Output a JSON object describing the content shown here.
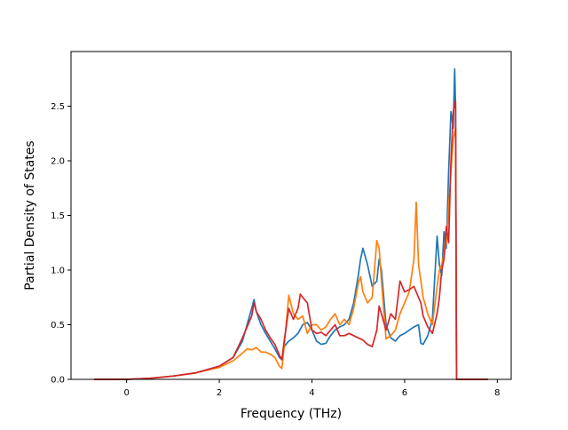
{
  "chart_data": {
    "type": "line",
    "title": "",
    "xlabel": "Frequency (THz)",
    "ylabel": "Partial Density of States",
    "xlim": [
      -1.2,
      8.3
    ],
    "ylim": [
      0.0,
      3.0
    ],
    "xticks": [
      "0",
      "2",
      "4",
      "6",
      "8"
    ],
    "yticks": [
      "0.0",
      "0.5",
      "1.0",
      "1.5",
      "2.0",
      "2.5"
    ],
    "grid": false,
    "legend": "none",
    "series": [
      {
        "color": "#1f77b4",
        "x": [
          -0.7,
          0.0,
          0.5,
          1.0,
          1.5,
          2.0,
          2.3,
          2.5,
          2.6,
          2.7,
          2.75,
          2.8,
          2.9,
          3.0,
          3.1,
          3.2,
          3.3,
          3.35,
          3.4,
          3.5,
          3.6,
          3.7,
          3.8,
          3.9,
          4.0,
          4.1,
          4.2,
          4.3,
          4.4,
          4.5,
          4.6,
          4.7,
          4.8,
          4.9,
          5.0,
          5.05,
          5.1,
          5.2,
          5.3,
          5.4,
          5.45,
          5.5,
          5.6,
          5.7,
          5.8,
          5.9,
          6.0,
          6.1,
          6.2,
          6.3,
          6.35,
          6.4,
          6.5,
          6.6,
          6.7,
          6.75,
          6.8,
          6.85,
          6.9,
          6.95,
          7.0,
          7.05,
          7.08,
          7.1,
          7.12,
          7.15,
          7.8
        ],
        "y": [
          0.0,
          0.0,
          0.01,
          0.03,
          0.06,
          0.12,
          0.2,
          0.35,
          0.5,
          0.65,
          0.73,
          0.62,
          0.5,
          0.42,
          0.35,
          0.28,
          0.2,
          0.18,
          0.3,
          0.35,
          0.38,
          0.42,
          0.5,
          0.52,
          0.45,
          0.35,
          0.32,
          0.33,
          0.4,
          0.45,
          0.48,
          0.5,
          0.55,
          0.7,
          0.95,
          1.1,
          1.2,
          1.05,
          0.85,
          0.9,
          1.1,
          1.0,
          0.5,
          0.38,
          0.35,
          0.4,
          0.42,
          0.45,
          0.48,
          0.5,
          0.33,
          0.32,
          0.4,
          0.55,
          1.31,
          1.05,
          0.95,
          1.35,
          1.2,
          1.9,
          2.45,
          2.3,
          2.84,
          2.5,
          0.0,
          0.0,
          0.0
        ]
      },
      {
        "color": "#ff7f0e",
        "x": [
          -0.7,
          0.0,
          0.5,
          1.0,
          1.5,
          2.0,
          2.3,
          2.5,
          2.6,
          2.7,
          2.8,
          2.9,
          3.0,
          3.1,
          3.2,
          3.3,
          3.35,
          3.4,
          3.5,
          3.6,
          3.7,
          3.8,
          3.9,
          4.0,
          4.1,
          4.2,
          4.3,
          4.4,
          4.5,
          4.6,
          4.7,
          4.8,
          4.9,
          5.0,
          5.05,
          5.1,
          5.2,
          5.3,
          5.4,
          5.45,
          5.5,
          5.6,
          5.7,
          5.8,
          5.9,
          6.0,
          6.1,
          6.2,
          6.25,
          6.3,
          6.4,
          6.5,
          6.6,
          6.7,
          6.75,
          6.8,
          6.9,
          7.0,
          7.05,
          7.1,
          7.12,
          7.15,
          7.8
        ],
        "y": [
          0.0,
          0.0,
          0.01,
          0.03,
          0.06,
          0.11,
          0.17,
          0.24,
          0.28,
          0.27,
          0.29,
          0.25,
          0.25,
          0.23,
          0.2,
          0.12,
          0.1,
          0.3,
          0.77,
          0.6,
          0.55,
          0.58,
          0.42,
          0.5,
          0.5,
          0.45,
          0.48,
          0.55,
          0.6,
          0.5,
          0.55,
          0.5,
          0.65,
          0.88,
          0.94,
          0.8,
          0.7,
          0.75,
          1.27,
          1.2,
          0.9,
          0.37,
          0.4,
          0.45,
          0.6,
          0.7,
          0.8,
          1.1,
          1.62,
          1.05,
          0.75,
          0.6,
          0.5,
          0.85,
          1.0,
          1.05,
          1.25,
          1.9,
          2.2,
          2.3,
          0.0,
          0.0,
          0.0
        ]
      },
      {
        "color": "#d62728",
        "x": [
          -0.7,
          0.0,
          0.5,
          1.0,
          1.5,
          2.0,
          2.3,
          2.5,
          2.6,
          2.7,
          2.75,
          2.8,
          2.9,
          3.0,
          3.1,
          3.2,
          3.3,
          3.35,
          3.4,
          3.5,
          3.6,
          3.7,
          3.75,
          3.8,
          3.9,
          4.0,
          4.1,
          4.2,
          4.3,
          4.4,
          4.5,
          4.6,
          4.7,
          4.8,
          4.9,
          5.0,
          5.1,
          5.2,
          5.3,
          5.4,
          5.45,
          5.5,
          5.6,
          5.7,
          5.8,
          5.9,
          6.0,
          6.1,
          6.2,
          6.3,
          6.35,
          6.4,
          6.5,
          6.6,
          6.7,
          6.75,
          6.8,
          6.85,
          6.9,
          6.95,
          7.0,
          7.05,
          7.1,
          7.12,
          7.15,
          7.8
        ],
        "y": [
          0.0,
          0.0,
          0.01,
          0.03,
          0.06,
          0.12,
          0.2,
          0.38,
          0.48,
          0.58,
          0.7,
          0.62,
          0.55,
          0.45,
          0.38,
          0.32,
          0.22,
          0.18,
          0.35,
          0.65,
          0.55,
          0.65,
          0.78,
          0.75,
          0.7,
          0.45,
          0.42,
          0.43,
          0.4,
          0.45,
          0.5,
          0.4,
          0.4,
          0.42,
          0.4,
          0.38,
          0.36,
          0.32,
          0.3,
          0.45,
          0.67,
          0.6,
          0.45,
          0.6,
          0.55,
          0.9,
          0.8,
          0.82,
          0.85,
          0.75,
          0.7,
          0.58,
          0.48,
          0.42,
          0.6,
          0.75,
          1.0,
          1.1,
          1.4,
          1.25,
          2.0,
          2.45,
          2.55,
          0.0,
          0.0,
          0.0
        ]
      }
    ]
  }
}
